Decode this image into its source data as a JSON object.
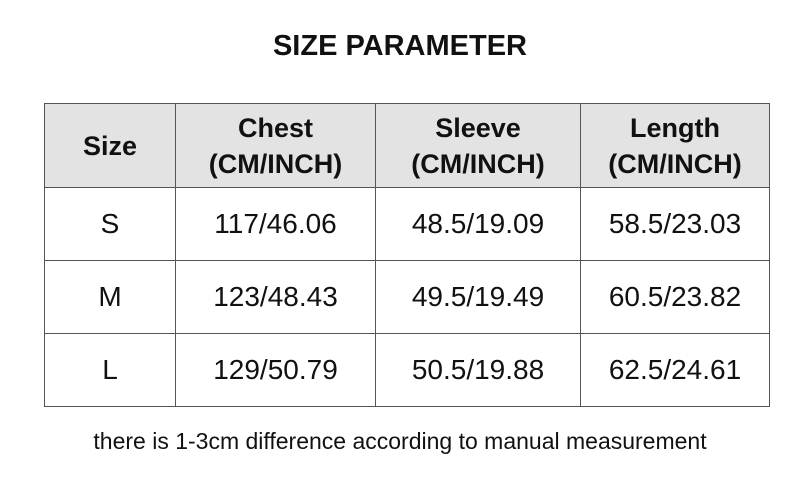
{
  "title": "SIZE PARAMETER",
  "table": {
    "header": [
      {
        "label": "Size"
      },
      {
        "label": "Chest",
        "unit": "(CM/INCH)"
      },
      {
        "label": "Sleeve",
        "unit": "(CM/INCH)"
      },
      {
        "label": "Length",
        "unit": "(CM/INCH)"
      }
    ],
    "rows": [
      [
        "S",
        "117/46.06",
        "48.5/19.09",
        "58.5/23.03"
      ],
      [
        "M",
        "123/48.43",
        "49.5/19.49",
        "60.5/23.82"
      ],
      [
        "L",
        "129/50.79",
        "50.5/19.88",
        "62.5/24.61"
      ]
    ]
  },
  "note": "there is 1-3cm difference according to manual measurement"
}
